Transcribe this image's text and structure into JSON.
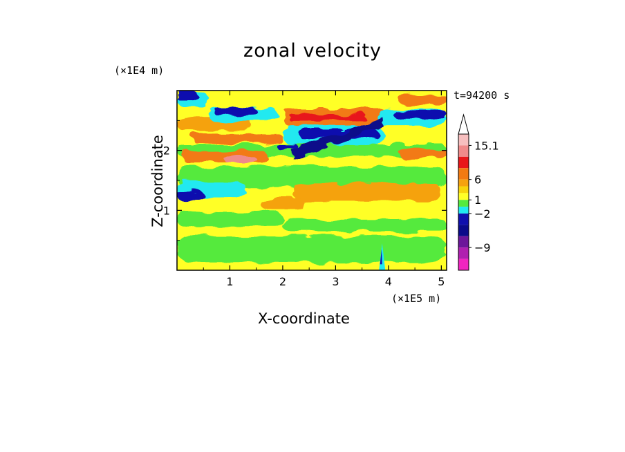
{
  "chart_data": {
    "type": "heatmap",
    "title": "zonal velocity",
    "xlabel": "X-coordinate",
    "ylabel": "Z-coordinate",
    "x_unit": "(×1E5 m)",
    "y_unit": "(×1E4 m)",
    "time_label": "t=94200 s",
    "xlim": [
      0,
      5.1
    ],
    "ylim": [
      0,
      3.0
    ],
    "x_ticks": [
      "1",
      "2",
      "3",
      "4",
      "5"
    ],
    "y_ticks": [
      "1",
      "2"
    ],
    "colorbar": {
      "labels": [
        "15.1",
        "6",
        "1",
        "−2",
        "−9"
      ],
      "levels_top_to_bottom": [
        {
          "color": "#ffffff",
          "role": "arrow"
        },
        {
          "color": "#f7bfbf"
        },
        {
          "color": "#f08a8a"
        },
        {
          "color": "#e8161a"
        },
        {
          "color": "#f27a12"
        },
        {
          "color": "#f5a20f"
        },
        {
          "color": "#f7d40c"
        },
        {
          "color": "#ffff26"
        },
        {
          "color": "#55ea3e"
        },
        {
          "color": "#21e9f0"
        },
        {
          "color": "#1010ae"
        },
        {
          "color": "#0b0b8a"
        },
        {
          "color": "#6c169a"
        },
        {
          "color": "#b01fb0"
        },
        {
          "color": "#f024c0"
        }
      ]
    },
    "structure": {
      "background_color": "#ffff26",
      "bands": [
        {
          "z": 2.7,
          "x0": 0.8,
          "x1": 1.6,
          "level": "#0b0b8a",
          "note": "negative jet upper-left"
        },
        {
          "z": 2.3,
          "x0": 2.2,
          "x1": 3.8,
          "level": "#0b0b8a",
          "note": "negative jet center"
        },
        {
          "z": 2.6,
          "x0": 4.0,
          "x1": 5.1,
          "level": "#0b0b8a",
          "note": "negative jet upper-right"
        },
        {
          "z": 2.55,
          "x0": 2.0,
          "x1": 4.0,
          "level": "#f27a12",
          "note": "positive jet upper"
        },
        {
          "z": 1.3,
          "x0": 2.2,
          "x1": 5.0,
          "level": "#f5a20f",
          "note": "positive band mid"
        },
        {
          "z": 0.4,
          "x0": 0.0,
          "x1": 5.1,
          "level": "#55ea3e",
          "note": "weak negative lower band"
        }
      ]
    }
  }
}
